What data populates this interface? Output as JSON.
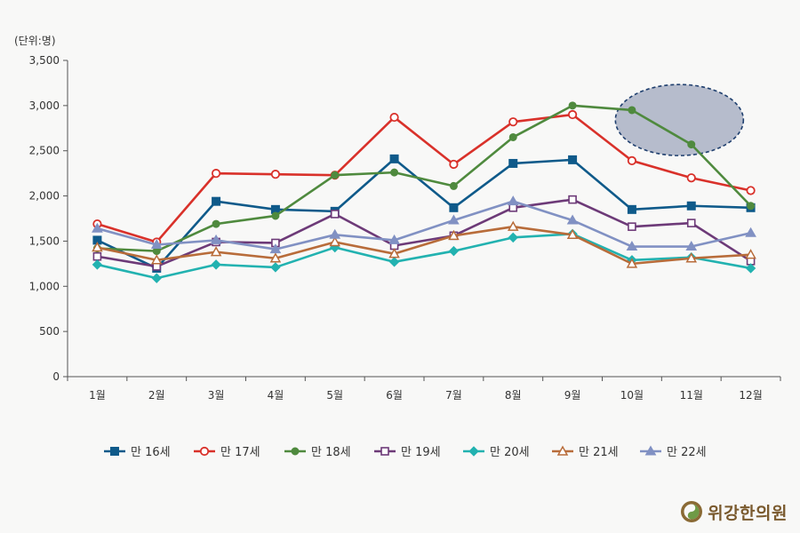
{
  "chart_data": {
    "type": "line",
    "unit_label": "(단위:명)",
    "categories": [
      "1월",
      "2월",
      "3월",
      "4월",
      "5월",
      "6월",
      "7월",
      "8월",
      "9월",
      "10월",
      "11월",
      "12월"
    ],
    "ylim": [
      0,
      3500
    ],
    "yticks": [
      0,
      500,
      1000,
      1500,
      2000,
      2500,
      3000,
      3500
    ],
    "ytick_labels": [
      "0",
      "500",
      "1,000",
      "1,500",
      "2,000",
      "2,500",
      "3,000",
      "3,500"
    ],
    "series": [
      {
        "name": "만 16세",
        "color": "#0f5a8a",
        "marker": "square-filled",
        "values": [
          1510,
          1200,
          1940,
          1850,
          1830,
          2410,
          1870,
          2360,
          2400,
          1850,
          1890,
          1870
        ]
      },
      {
        "name": "만 17세",
        "color": "#d9312a",
        "marker": "circle-open",
        "values": [
          1690,
          1490,
          2250,
          2240,
          2230,
          2870,
          2350,
          2820,
          2900,
          2390,
          2200,
          2060
        ]
      },
      {
        "name": "만 18세",
        "color": "#4f8a3e",
        "marker": "circle-filled",
        "values": [
          1420,
          1390,
          1690,
          1780,
          2230,
          2260,
          2110,
          2650,
          3000,
          2950,
          2570,
          1890
        ]
      },
      {
        "name": "만 19세",
        "color": "#6d3a78",
        "marker": "square-open",
        "values": [
          1330,
          1220,
          1490,
          1480,
          1800,
          1450,
          1560,
          1870,
          1960,
          1660,
          1700,
          1280
        ]
      },
      {
        "name": "만 20세",
        "color": "#22b2b0",
        "marker": "diamond-filled",
        "values": [
          1240,
          1090,
          1240,
          1210,
          1430,
          1270,
          1390,
          1540,
          1580,
          1290,
          1320,
          1200
        ]
      },
      {
        "name": "만 21세",
        "color": "#b86c3a",
        "marker": "triangle-open",
        "values": [
          1430,
          1290,
          1380,
          1310,
          1490,
          1360,
          1560,
          1660,
          1570,
          1250,
          1310,
          1350
        ]
      },
      {
        "name": "만 22세",
        "color": "#8191c3",
        "marker": "triangle-filled",
        "values": [
          1640,
          1460,
          1510,
          1410,
          1570,
          1510,
          1730,
          1940,
          1730,
          1440,
          1440,
          1590
        ]
      }
    ],
    "annotation": {
      "shape": "dashed-ellipse",
      "around_categories": [
        "10월",
        "11월"
      ],
      "fill": "#b6bccc",
      "stroke": "#1f3f6e"
    },
    "legend_position": "bottom"
  },
  "logo": {
    "text": "위강한의원",
    "color": "#7a5a2e"
  }
}
